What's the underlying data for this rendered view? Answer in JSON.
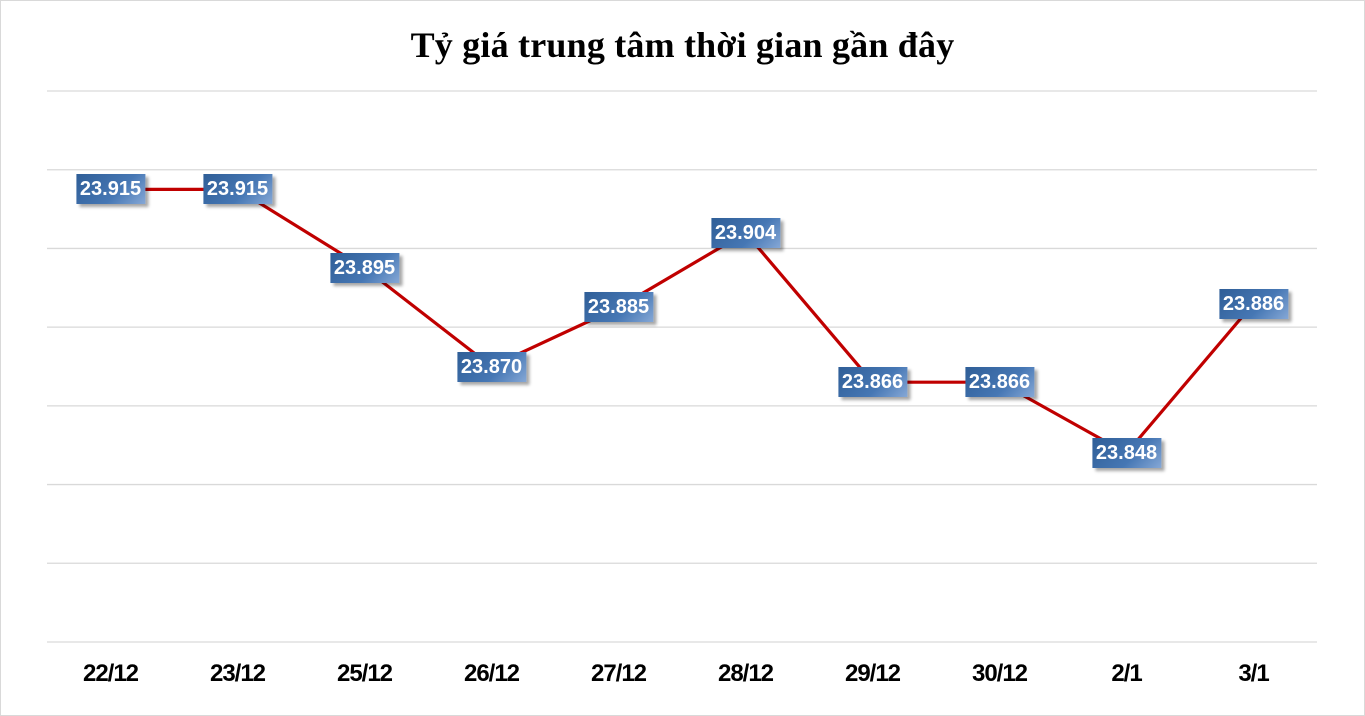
{
  "chart_data": {
    "type": "line",
    "title": "Tỷ giá trung tâm thời gian gần đây",
    "xlabel": "",
    "ylabel": "",
    "categories": [
      "22/12",
      "23/12",
      "25/12",
      "26/12",
      "27/12",
      "28/12",
      "29/12",
      "30/12",
      "2/1",
      "3/1"
    ],
    "series": [
      {
        "name": "Tỷ giá trung tâm",
        "values": [
          23.915,
          23.915,
          23.895,
          23.87,
          23.885,
          23.904,
          23.866,
          23.866,
          23.848,
          23.886
        ],
        "labels": [
          "23.915",
          "23.915",
          "23.895",
          "23.870",
          "23.885",
          "23.904",
          "23.866",
          "23.866",
          "23.848",
          "23.886"
        ],
        "color": "#c00000"
      }
    ],
    "ylim": [
      23.8,
      23.94
    ],
    "grid": true,
    "legend": "none",
    "label_color": "#3f6ca8"
  }
}
